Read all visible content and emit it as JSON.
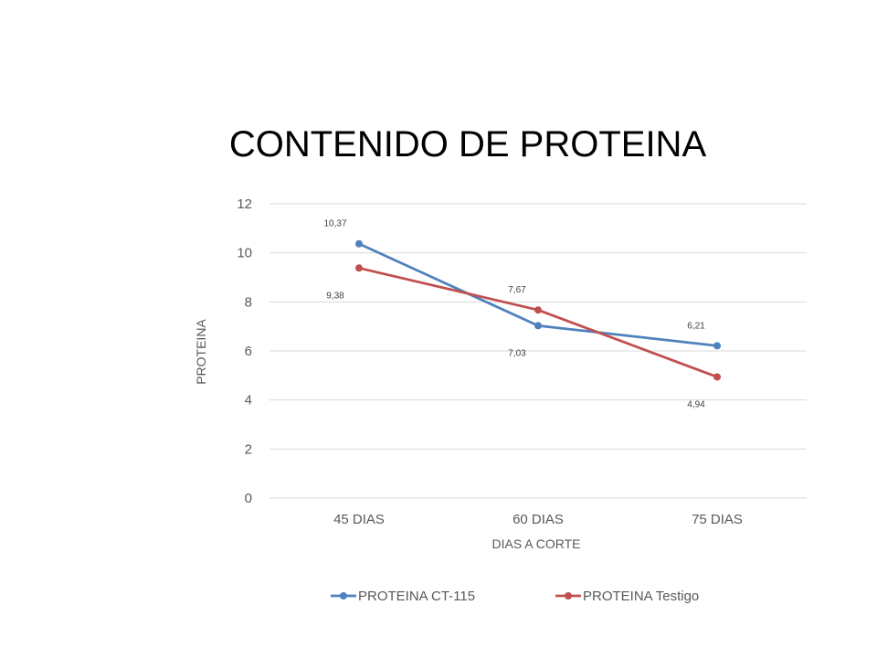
{
  "chart_data": {
    "type": "line",
    "title": "CONTENIDO DE PROTEINA",
    "xlabel": "DIAS A CORTE",
    "ylabel": "PROTEINA",
    "categories": [
      "45 DIAS",
      "60 DIAS",
      "75 DIAS"
    ],
    "ylim": [
      0,
      12
    ],
    "yticks": [
      0,
      2,
      4,
      6,
      8,
      10,
      12
    ],
    "grid": true,
    "legend_position": "bottom",
    "series": [
      {
        "name": "PROTEINA CT-115",
        "color": "#4F81BD",
        "values": [
          10.37,
          7.03,
          6.21
        ],
        "labels": [
          "10,37",
          "7,03",
          "6,21"
        ]
      },
      {
        "name": "PROTEINA Testigo",
        "color": "#C0504D",
        "values": [
          9.38,
          7.67,
          4.94
        ],
        "labels": [
          "9,38",
          "7,67",
          "4,94"
        ]
      }
    ]
  }
}
